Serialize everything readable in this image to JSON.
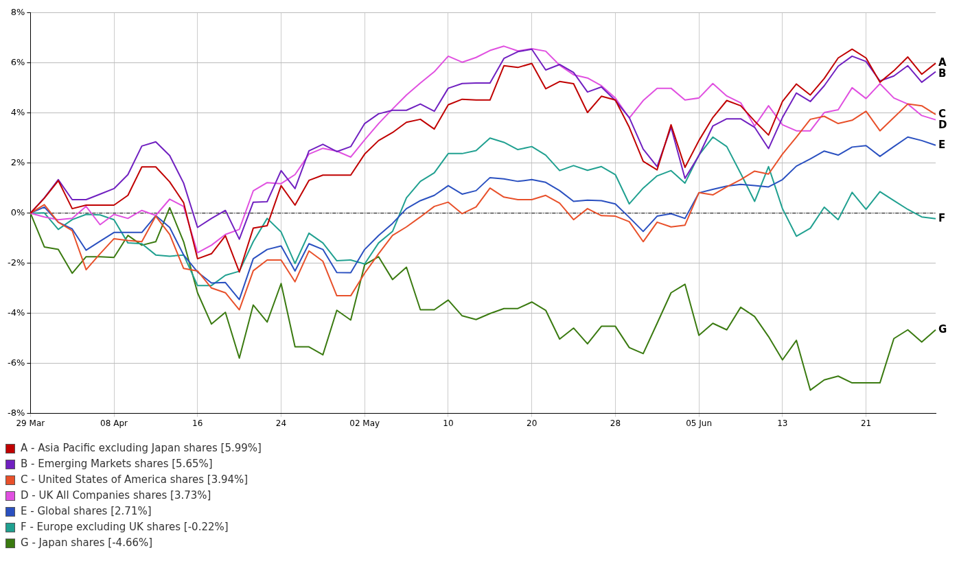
{
  "chart_data": {
    "type": "line",
    "categories": [
      "29 Mar",
      null,
      null,
      null,
      null,
      null,
      "08 Apr",
      null,
      null,
      null,
      null,
      null,
      "16",
      null,
      null,
      null,
      null,
      null,
      "24",
      null,
      null,
      null,
      null,
      null,
      "02 May",
      null,
      null,
      null,
      null,
      null,
      "10",
      null,
      null,
      null,
      null,
      null,
      "20",
      null,
      null,
      null,
      null,
      null,
      "28",
      null,
      null,
      null,
      null,
      null,
      "05 Jun",
      null,
      null,
      null,
      null,
      null,
      "13",
      null,
      null,
      null,
      null,
      null,
      "21",
      null,
      null,
      null,
      null,
      null
    ],
    "ylim": [
      -8,
      8
    ],
    "yticks": [
      {
        "value": -8,
        "label": "-8%"
      },
      {
        "value": -6,
        "label": "-6%"
      },
      {
        "value": -4,
        "label": "-4%"
      },
      {
        "value": -2,
        "label": "-2%"
      },
      {
        "value": 0,
        "label": "0%"
      },
      {
        "value": 2,
        "label": "2%"
      },
      {
        "value": 4,
        "label": "4%"
      },
      {
        "value": 6,
        "label": "6%"
      },
      {
        "value": 8,
        "label": "8%"
      }
    ],
    "grid": true,
    "legend": "bottom",
    "marker": "none",
    "line_style": "solid",
    "ref_lines": [
      {
        "axis": "y",
        "value": 0,
        "color": "#000000",
        "line_style": "dashed"
      }
    ],
    "annotations": [
      "A",
      "B",
      "C",
      "D",
      "E",
      "F",
      "G"
    ],
    "series": [
      {
        "name": "A - Asia Pacific excluding Japan shares [5.99%]",
        "color": "#c00000",
        "values": [
          0,
          0.6,
          1.3,
          0.18,
          0.32,
          0.32,
          0.32,
          0.71,
          1.85,
          1.85,
          1.25,
          0.42,
          -1.82,
          -1.62,
          -0.9,
          -2.35,
          -0.6,
          -0.5,
          1.1,
          0.32,
          1.31,
          1.52,
          1.52,
          1.52,
          2.36,
          2.9,
          3.22,
          3.63,
          3.75,
          3.36,
          4.33,
          4.55,
          4.52,
          4.52,
          5.89,
          5.82,
          5.98,
          4.97,
          5.26,
          5.17,
          4.02,
          4.67,
          4.52,
          3.43,
          2.07,
          1.73,
          3.53,
          1.83,
          2.9,
          3.82,
          4.5,
          4.29,
          3.68,
          3.12,
          4.46,
          5.16,
          4.72,
          5.38,
          6.2,
          6.55,
          6.2,
          5.23,
          5.69,
          6.24,
          5.55,
          5.99
        ]
      },
      {
        "name": "B - Emerging Markets shares [5.65%]",
        "color": "#7020c0",
        "values": [
          0,
          0.61,
          1.34,
          0.54,
          0.54,
          0.76,
          0.98,
          1.54,
          2.68,
          2.85,
          2.3,
          1.2,
          -0.57,
          -0.21,
          0.11,
          -1.04,
          0.44,
          0.46,
          1.7,
          0.98,
          2.49,
          2.75,
          2.46,
          2.66,
          3.58,
          3.97,
          4.11,
          4.11,
          4.36,
          4.07,
          4.99,
          5.18,
          5.2,
          5.2,
          6.18,
          6.45,
          6.55,
          5.72,
          5.94,
          5.62,
          4.84,
          5.04,
          4.5,
          3.82,
          2.56,
          1.86,
          3.43,
          1.39,
          2.3,
          3.48,
          3.77,
          3.77,
          3.43,
          2.58,
          3.82,
          4.8,
          4.46,
          5.09,
          5.87,
          6.27,
          6.06,
          5.28,
          5.48,
          5.89,
          5.23,
          5.65
        ]
      },
      {
        "name": "C - United States of America shares [3.94%]",
        "color": "#e8502a",
        "values": [
          0,
          0.34,
          -0.36,
          -0.7,
          -2.26,
          -1.62,
          -1.02,
          -1.09,
          -1.14,
          -0.12,
          -0.85,
          -2.21,
          -2.31,
          -2.99,
          -3.18,
          -3.86,
          -2.3,
          -1.87,
          -1.87,
          -2.74,
          -1.51,
          -1.92,
          -3.3,
          -3.3,
          -2.4,
          -1.62,
          -0.89,
          -0.55,
          -0.15,
          0.27,
          0.44,
          -0.02,
          0.25,
          1.0,
          0.64,
          0.54,
          0.54,
          0.71,
          0.4,
          -0.26,
          0.18,
          -0.1,
          -0.12,
          -0.34,
          -1.14,
          -0.36,
          -0.55,
          -0.48,
          0.82,
          0.73,
          1.05,
          1.34,
          1.68,
          1.56,
          2.36,
          3.04,
          3.75,
          3.87,
          3.58,
          3.71,
          4.07,
          3.29,
          3.82,
          4.36,
          4.29,
          3.94
        ]
      },
      {
        "name": "D - UK All Companies shares [3.73%]",
        "color": "#e050e0",
        "values": [
          0,
          -0.15,
          -0.26,
          -0.21,
          0.27,
          -0.46,
          -0.05,
          -0.21,
          0.11,
          -0.09,
          0.56,
          0.27,
          -1.58,
          -1.28,
          -0.85,
          -0.65,
          0.89,
          1.22,
          1.18,
          1.54,
          2.36,
          2.59,
          2.48,
          2.24,
          2.93,
          3.58,
          4.16,
          4.72,
          5.2,
          5.65,
          6.27,
          6.03,
          6.22,
          6.5,
          6.67,
          6.48,
          6.57,
          6.47,
          5.91,
          5.53,
          5.4,
          5.09,
          4.6,
          3.8,
          4.5,
          4.99,
          4.99,
          4.52,
          4.6,
          5.18,
          4.68,
          4.41,
          3.48,
          4.29,
          3.53,
          3.29,
          3.29,
          4.02,
          4.13,
          5.01,
          4.58,
          5.17,
          4.6,
          4.36,
          3.9,
          3.73
        ]
      },
      {
        "name": "E - Global shares [2.71%]",
        "color": "#2a50c0",
        "values": [
          0,
          0.24,
          -0.36,
          -0.63,
          -1.48,
          -1.12,
          -0.77,
          -0.77,
          -0.77,
          -0.1,
          -0.57,
          -1.67,
          -2.35,
          -2.79,
          -2.77,
          -3.45,
          -1.82,
          -1.45,
          -1.31,
          -2.31,
          -1.22,
          -1.45,
          -2.37,
          -2.38,
          -1.45,
          -0.89,
          -0.41,
          0.18,
          0.5,
          0.71,
          1.1,
          0.76,
          0.9,
          1.42,
          1.37,
          1.27,
          1.34,
          1.23,
          0.9,
          0.47,
          0.52,
          0.5,
          0.37,
          -0.17,
          -0.73,
          -0.12,
          -0.02,
          -0.21,
          0.81,
          0.95,
          1.08,
          1.15,
          1.1,
          1.05,
          1.34,
          1.88,
          2.17,
          2.48,
          2.32,
          2.64,
          2.7,
          2.27,
          2.66,
          3.04,
          2.9,
          2.71
        ]
      },
      {
        "name": "F - Europe excluding UK shares [-0.22%]",
        "color": "#20a090",
        "values": [
          0,
          0.01,
          -0.65,
          -0.26,
          -0.05,
          -0.07,
          -0.26,
          -1.19,
          -1.22,
          -1.67,
          -1.72,
          -1.67,
          -2.89,
          -2.89,
          -2.48,
          -2.32,
          -1.14,
          -0.21,
          -0.75,
          -2.01,
          -0.8,
          -1.19,
          -1.9,
          -1.87,
          -2.03,
          -1.19,
          -0.73,
          0.61,
          1.27,
          1.61,
          2.38,
          2.38,
          2.5,
          3.0,
          2.83,
          2.54,
          2.66,
          2.32,
          1.7,
          1.9,
          1.71,
          1.86,
          1.54,
          0.37,
          1.0,
          1.49,
          1.7,
          1.2,
          2.32,
          3.04,
          2.66,
          1.59,
          0.47,
          1.86,
          0.18,
          -0.92,
          -0.6,
          0.24,
          -0.26,
          0.83,
          0.15,
          0.86,
          0.5,
          0.15,
          -0.15,
          -0.22
        ]
      },
      {
        "name": "G - Japan shares [-4.66%]",
        "color": "#3a7a10",
        "values": [
          0,
          -1.35,
          -1.45,
          -2.4,
          -1.74,
          -1.74,
          -1.77,
          -0.89,
          -1.28,
          -1.14,
          0.22,
          -1.14,
          -3.18,
          -4.43,
          -3.96,
          -5.79,
          -3.67,
          -4.35,
          -2.81,
          -5.34,
          -5.34,
          -5.66,
          -3.88,
          -4.27,
          -2.06,
          -1.74,
          -2.65,
          -2.16,
          -3.86,
          -3.86,
          -3.47,
          -4.1,
          -4.25,
          -4.01,
          -3.81,
          -3.81,
          -3.55,
          -3.88,
          -5.03,
          -4.59,
          -5.22,
          -4.52,
          -4.52,
          -5.37,
          -5.61,
          -4.4,
          -3.18,
          -2.84,
          -4.88,
          -4.4,
          -4.66,
          -3.76,
          -4.13,
          -4.93,
          -5.86,
          -5.08,
          -7.07,
          -6.66,
          -6.51,
          -6.78,
          -6.78,
          -6.78,
          -5.01,
          -4.66,
          -5.15,
          -4.66
        ]
      }
    ]
  }
}
